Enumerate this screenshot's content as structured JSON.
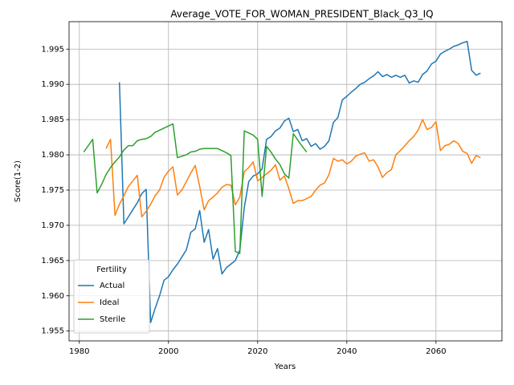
{
  "chart_data": {
    "type": "line",
    "title": "Average_VOTE_FOR_WOMAN_PRESIDENT_Black_Q3_IQ",
    "x_label": "Years",
    "y_label": "Score(1-2)",
    "x": [
      1981,
      1982,
      1983,
      1984,
      1985,
      1986,
      1987,
      1988,
      1989,
      1990,
      1991,
      1992,
      1993,
      1994,
      1995,
      1996,
      1997,
      1998,
      1999,
      2000,
      2001,
      2002,
      2003,
      2004,
      2005,
      2006,
      2007,
      2008,
      2009,
      2010,
      2011,
      2012,
      2013,
      2014,
      2015,
      2016,
      2017,
      2018,
      2019,
      2020,
      2021,
      2022,
      2023,
      2024,
      2025,
      2026,
      2027,
      2028,
      2029,
      2030,
      2031,
      2032,
      2033,
      2034,
      2035,
      2036,
      2037,
      2038,
      2039,
      2040,
      2041,
      2042,
      2043,
      2044,
      2045,
      2046,
      2047,
      2048,
      2049,
      2050,
      2051,
      2052,
      2053,
      2054,
      2055,
      2056,
      2057,
      2058,
      2059,
      2060,
      2061,
      2062,
      2063,
      2064,
      2065,
      2066,
      2067,
      2068,
      2069,
      2070
    ],
    "series": [
      {
        "name": "Actual",
        "color": "#1f77b4",
        "values": [
          null,
          null,
          null,
          null,
          null,
          null,
          null,
          null,
          1.9903,
          1.9702,
          1.9712,
          1.9722,
          1.9732,
          1.9745,
          1.9751,
          1.9562,
          1.9582,
          1.96,
          1.9622,
          1.9627,
          1.9637,
          1.9645,
          1.9655,
          1.9665,
          1.969,
          1.9695,
          1.9721,
          1.9676,
          1.9694,
          1.9652,
          1.9667,
          1.9631,
          1.964,
          1.9645,
          1.965,
          1.9665,
          1.9725,
          1.9762,
          1.977,
          1.9773,
          1.978,
          1.9822,
          1.9826,
          1.9834,
          1.9838,
          1.9848,
          1.9852,
          1.9833,
          1.9836,
          1.982,
          1.9823,
          1.9812,
          1.9816,
          1.9808,
          1.9812,
          1.982,
          1.9846,
          1.9853,
          1.9878,
          1.9883,
          1.9889,
          1.9894,
          1.99,
          1.9903,
          1.9908,
          1.9912,
          1.9918,
          1.9911,
          1.9914,
          1.991,
          1.9913,
          1.991,
          1.9913,
          1.9902,
          1.9905,
          1.9903,
          1.9914,
          1.9919,
          1.9929,
          1.9933,
          1.9943,
          1.9947,
          1.995,
          1.9954,
          1.9956,
          1.9959,
          1.9961,
          1.992,
          1.9913,
          1.9916
        ]
      },
      {
        "name": "Ideal",
        "color": "#ff7f0e",
        "values": [
          null,
          null,
          null,
          null,
          null,
          1.9809,
          1.9822,
          1.9714,
          1.973,
          1.9742,
          1.9755,
          1.9763,
          1.9771,
          1.9712,
          1.972,
          1.973,
          1.9742,
          1.975,
          1.9768,
          1.9777,
          1.9783,
          1.9743,
          1.975,
          1.9762,
          1.9774,
          1.9785,
          1.9755,
          1.9722,
          1.9735,
          1.974,
          1.9746,
          1.9754,
          1.9758,
          1.9757,
          1.9729,
          1.974,
          1.9776,
          1.9782,
          1.979,
          1.9763,
          1.9768,
          1.9773,
          1.9778,
          1.9786,
          1.9764,
          1.977,
          1.9752,
          1.9731,
          1.9735,
          1.9735,
          1.9738,
          1.9741,
          1.975,
          1.9757,
          1.976,
          1.9772,
          1.9795,
          1.9791,
          1.9793,
          1.9787,
          1.9791,
          1.9798,
          1.9801,
          1.9803,
          1.9791,
          1.9793,
          1.9783,
          1.9768,
          1.9775,
          1.9779,
          1.98,
          1.9806,
          1.9813,
          1.982,
          1.9826,
          1.9835,
          1.985,
          1.9836,
          1.9839,
          1.9847,
          1.9806,
          1.9813,
          1.9815,
          1.982,
          1.9816,
          1.9805,
          1.9802,
          1.9788,
          1.9799,
          1.9796
        ]
      },
      {
        "name": "Sterile",
        "color": "#2ca02c",
        "values": [
          1.9804,
          1.9813,
          1.9822,
          1.9746,
          1.9758,
          1.9772,
          1.9782,
          1.979,
          1.9797,
          1.9807,
          1.9813,
          1.9813,
          1.982,
          1.9822,
          1.9823,
          1.9826,
          1.9832,
          1.9835,
          1.9838,
          1.9841,
          1.9844,
          1.9796,
          1.9798,
          1.98,
          1.9804,
          1.9805,
          1.9808,
          1.9809,
          1.9809,
          1.9809,
          1.9809,
          1.9806,
          1.9803,
          1.9799,
          1.9663,
          1.966,
          1.9834,
          1.9831,
          1.9828,
          1.9822,
          1.9741,
          1.9812,
          1.9804,
          1.9794,
          1.9786,
          1.9773,
          1.9767,
          1.983,
          1.9821,
          1.9812,
          1.9804,
          null,
          null,
          null,
          null,
          null,
          null,
          null,
          null,
          null,
          null,
          null,
          null,
          null,
          null,
          null,
          null,
          null,
          null,
          null,
          null,
          null,
          null,
          null,
          null,
          null,
          null,
          null,
          null,
          null,
          null,
          null,
          null,
          null,
          null,
          null,
          null,
          null,
          null,
          null
        ]
      }
    ],
    "xlim": [
      1977.7,
      2074.8
    ],
    "xticks": [
      1980,
      2000,
      2020,
      2040,
      2060
    ],
    "ylim": [
      1.9536,
      1.9989
    ],
    "yticks": [
      1.955,
      {
        "value": 1.96,
        "label": "1.960"
      },
      1.965,
      {
        "value": 1.97,
        "label": "1.970"
      },
      1.975,
      {
        "value": 1.98,
        "label": "1.980"
      },
      1.985,
      {
        "value": 1.99,
        "label": "1.990"
      },
      1.995
    ],
    "grid": true,
    "legend_title": "Fertility",
    "legend_position": "lower-left"
  }
}
